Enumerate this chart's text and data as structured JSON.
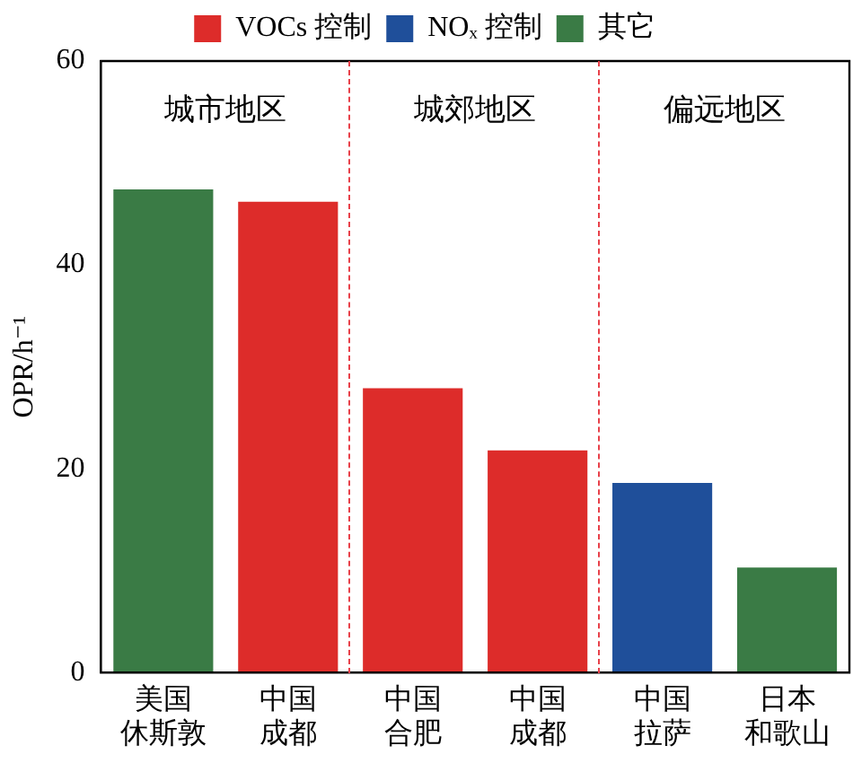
{
  "chart_data": {
    "type": "bar",
    "ylabel": "OPR/h⁻¹",
    "categories": [
      "美国休斯敦",
      "中国成都",
      "中国合肥",
      "中国成都",
      "中国拉萨",
      "日本和歌山"
    ],
    "series": [
      {
        "name": "VOCs 控制",
        "color": "#dd2c2a",
        "values": [
          null,
          46.2,
          27.9,
          21.8,
          null,
          null
        ]
      },
      {
        "name": "NOₓ 控制",
        "color": "#1f4f9a",
        "values": [
          null,
          null,
          null,
          null,
          18.6,
          null
        ]
      },
      {
        "name": "其它",
        "color": "#3a7b45",
        "values": [
          47.4,
          null,
          null,
          null,
          null,
          10.3
        ]
      }
    ],
    "ylim": [
      0,
      60
    ],
    "yticks": [
      0,
      20,
      40,
      60
    ],
    "grid": false,
    "legend": "top",
    "annotations": [
      "城市地区",
      "城郊地区",
      "偏远地区"
    ]
  }
}
